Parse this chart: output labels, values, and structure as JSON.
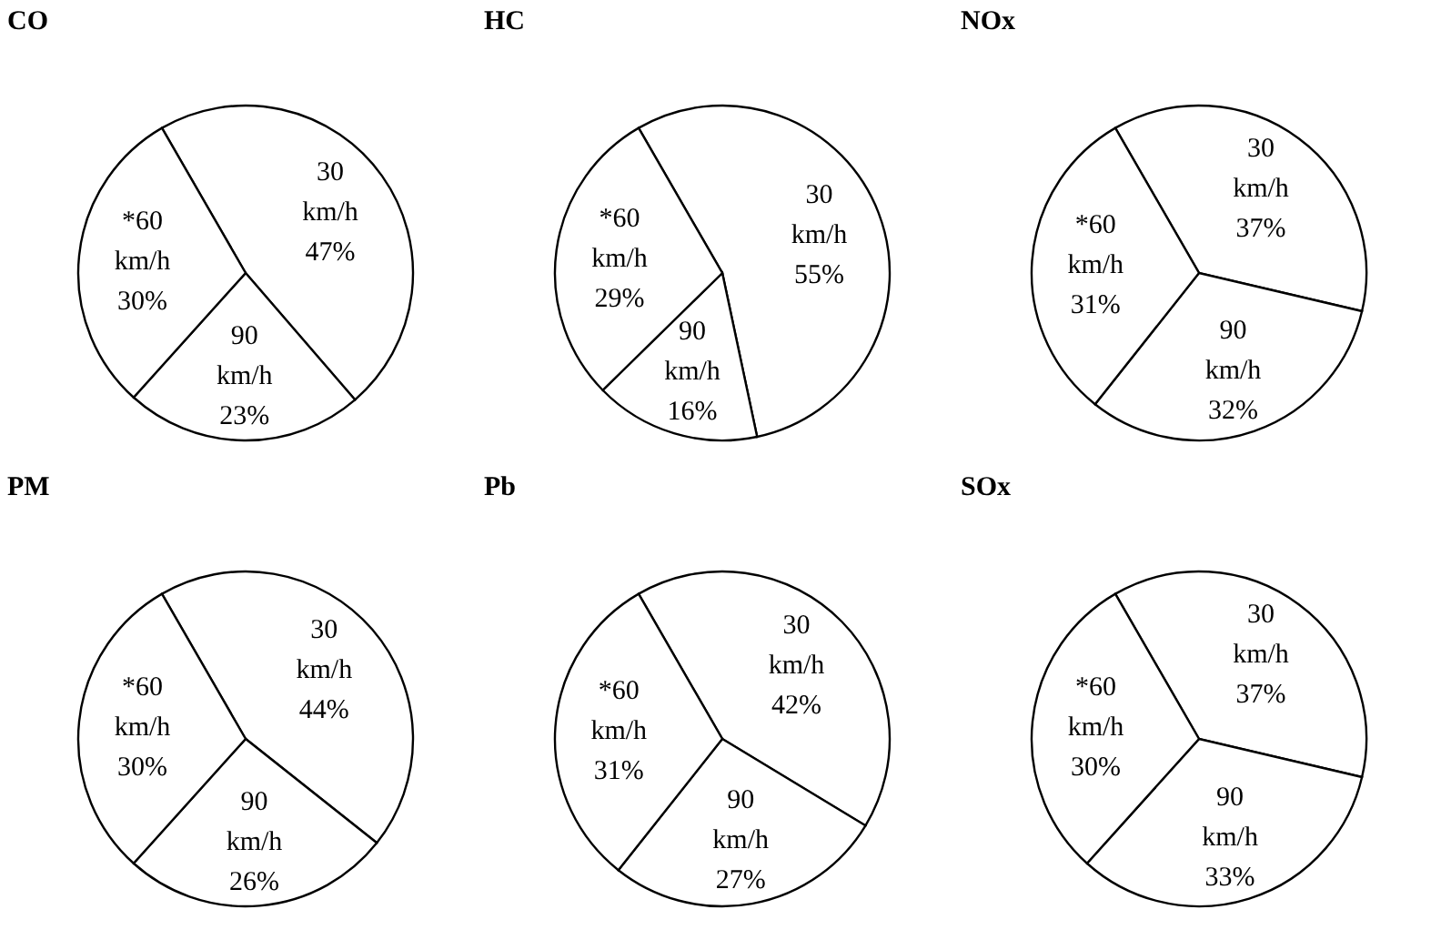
{
  "chart_data": [
    {
      "type": "pie",
      "title": "CO",
      "categories": [
        "30 km/h",
        "90 km/h",
        "*60 km/h"
      ],
      "values": [
        47,
        23,
        30
      ],
      "value_labels": [
        "47%",
        "23%",
        "30%"
      ],
      "colors": [
        "#ffffff",
        "#ffffff",
        "#ffffff"
      ]
    },
    {
      "type": "pie",
      "title": "HC",
      "categories": [
        "30 km/h",
        "90 km/h",
        "*60 km/h"
      ],
      "values": [
        55,
        16,
        29
      ],
      "value_labels": [
        "55%",
        "16%",
        "29%"
      ],
      "colors": [
        "#ffffff",
        "#ffffff",
        "#ffffff"
      ]
    },
    {
      "type": "pie",
      "title": "NOx",
      "categories": [
        "30 km/h",
        "90 km/h",
        "*60 km/h"
      ],
      "values": [
        37,
        32,
        31
      ],
      "value_labels": [
        "37%",
        "32%",
        "31%"
      ],
      "colors": [
        "#ffffff",
        "#ffffff",
        "#ffffff"
      ]
    },
    {
      "type": "pie",
      "title": "PM",
      "categories": [
        "30 km/h",
        "90 km/h",
        "*60 km/h"
      ],
      "values": [
        44,
        26,
        30
      ],
      "value_labels": [
        "44%",
        "26%",
        "30%"
      ],
      "colors": [
        "#ffffff",
        "#ffffff",
        "#ffffff"
      ]
    },
    {
      "type": "pie",
      "title": "Pb",
      "categories": [
        "30 km/h",
        "90 km/h",
        "*60 km/h"
      ],
      "values": [
        42,
        27,
        31
      ],
      "value_labels": [
        "42%",
        "27%",
        "31%"
      ],
      "colors": [
        "#ffffff",
        "#ffffff",
        "#ffffff"
      ]
    },
    {
      "type": "pie",
      "title": "SOx",
      "categories": [
        "30 km/h",
        "90 km/h",
        "*60 km/h"
      ],
      "values": [
        37,
        33,
        30
      ],
      "value_labels": [
        "37%",
        "33%",
        "30%"
      ],
      "colors": [
        "#ffffff",
        "#ffffff",
        "#ffffff"
      ]
    }
  ]
}
